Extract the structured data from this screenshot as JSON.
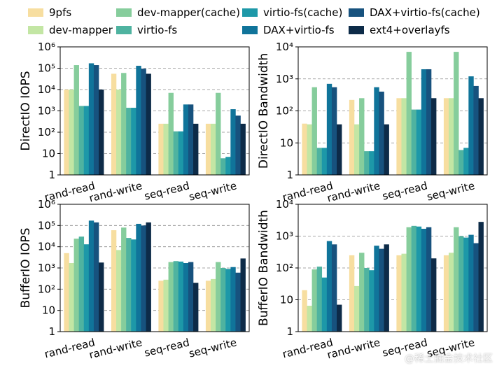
{
  "legend": [
    {
      "name": "9pfs",
      "color": "#f7dea0"
    },
    {
      "name": "dev-mapper",
      "color": "#c3e6a4"
    },
    {
      "name": "dev-mapper(cache)",
      "color": "#86cd9c"
    },
    {
      "name": "virtio-fs",
      "color": "#4fb3a0"
    },
    {
      "name": "virtio-fs(cache)",
      "color": "#1d98a8"
    },
    {
      "name": "DAX+virtio-fs",
      "color": "#10749a"
    },
    {
      "name": "DAX+virtio-fs(cache)",
      "color": "#17527e"
    },
    {
      "name": "ext4+overlayfs",
      "color": "#0d2b48"
    }
  ],
  "chart_data": [
    {
      "type": "bar",
      "ylabel": "DirectIO IOPS",
      "yscale": "log",
      "ylim": [
        1,
        1000000
      ],
      "yticks": [
        "1",
        "10",
        "10^2",
        "10^3",
        "10^4",
        "10^5",
        "10^6"
      ],
      "grid": "dashed-horizontal",
      "categories": [
        "rand-read",
        "rand-write",
        "seq-read",
        "seq-write"
      ],
      "series": [
        {
          "name": "9pfs",
          "values": [
            10000,
            55000,
            250,
            250
          ]
        },
        {
          "name": "dev-mapper",
          "values": [
            10000,
            10000,
            250,
            250
          ]
        },
        {
          "name": "dev-mapper(cache)",
          "values": [
            140000,
            60000,
            7000,
            7000
          ]
        },
        {
          "name": "virtio-fs",
          "values": [
            1700,
            1400,
            110,
            6
          ]
        },
        {
          "name": "virtio-fs(cache)",
          "values": [
            1700,
            1400,
            110,
            7
          ]
        },
        {
          "name": "DAX+virtio-fs",
          "values": [
            170000,
            130000,
            2000,
            1200
          ]
        },
        {
          "name": "DAX+virtio-fs(cache)",
          "values": [
            140000,
            95000,
            2000,
            600
          ]
        },
        {
          "name": "ext4+overlayfs",
          "values": [
            10000,
            55000,
            250,
            250
          ]
        }
      ]
    },
    {
      "type": "bar",
      "ylabel": "DirectIO Bandwidth",
      "yscale": "log",
      "ylim": [
        1,
        10000
      ],
      "yticks": [
        "1",
        "10",
        "10^2",
        "10^3",
        "10^4"
      ],
      "grid": "dashed-horizontal",
      "categories": [
        "rand-read",
        "rand-write",
        "seq-read",
        "seq-write"
      ],
      "series": [
        {
          "name": "9pfs",
          "values": [
            40,
            220,
            250,
            250
          ]
        },
        {
          "name": "dev-mapper",
          "values": [
            38,
            38,
            250,
            250
          ]
        },
        {
          "name": "dev-mapper(cache)",
          "values": [
            550,
            250,
            7000,
            7000
          ]
        },
        {
          "name": "virtio-fs",
          "values": [
            7,
            5.5,
            110,
            6
          ]
        },
        {
          "name": "virtio-fs(cache)",
          "values": [
            7,
            5.5,
            110,
            7
          ]
        },
        {
          "name": "DAX+virtio-fs",
          "values": [
            700,
            550,
            2000,
            1200
          ]
        },
        {
          "name": "DAX+virtio-fs(cache)",
          "values": [
            550,
            400,
            2000,
            600
          ]
        },
        {
          "name": "ext4+overlayfs",
          "values": [
            38,
            38,
            250,
            250
          ]
        }
      ]
    },
    {
      "type": "bar",
      "ylabel": "BufferIO IOPS",
      "yscale": "log",
      "ylim": [
        1,
        1000000
      ],
      "yticks": [
        "1",
        "10",
        "10^2",
        "10^3",
        "10^4",
        "10^5",
        "10^6"
      ],
      "grid": "dashed-horizontal",
      "categories": [
        "rand-read",
        "rand-write",
        "seq-read",
        "seq-write"
      ],
      "series": [
        {
          "name": "9pfs",
          "values": [
            5000,
            60000,
            250,
            250
          ]
        },
        {
          "name": "dev-mapper",
          "values": [
            1700,
            7000,
            280,
            300
          ]
        },
        {
          "name": "dev-mapper(cache)",
          "values": [
            24000,
            80000,
            1900,
            1900
          ]
        },
        {
          "name": "virtio-fs",
          "values": [
            30000,
            26000,
            2100,
            1000
          ]
        },
        {
          "name": "virtio-fs(cache)",
          "values": [
            13000,
            22000,
            2000,
            900
          ]
        },
        {
          "name": "DAX+virtio-fs",
          "values": [
            170000,
            120000,
            1700,
            1100
          ]
        },
        {
          "name": "DAX+virtio-fs(cache)",
          "values": [
            140000,
            100000,
            1900,
            600
          ]
        },
        {
          "name": "ext4+overlayfs",
          "values": [
            1800,
            140000,
            200,
            2800
          ]
        }
      ]
    },
    {
      "type": "bar",
      "ylabel": "BufferIO Bandwidth",
      "yscale": "log",
      "ylim": [
        1,
        10000
      ],
      "yticks": [
        "1",
        "10",
        "10^2",
        "10^3",
        "10^4"
      ],
      "grid": "dashed-horizontal",
      "categories": [
        "rand-read",
        "rand-write",
        "seq-read",
        "seq-write"
      ],
      "series": [
        {
          "name": "9pfs",
          "values": [
            20,
            250,
            250,
            250
          ]
        },
        {
          "name": "dev-mapper",
          "values": [
            6.5,
            27,
            280,
            300
          ]
        },
        {
          "name": "dev-mapper(cache)",
          "values": [
            90,
            300,
            1900,
            1900
          ]
        },
        {
          "name": "virtio-fs",
          "values": [
            110,
            100,
            2100,
            1000
          ]
        },
        {
          "name": "virtio-fs(cache)",
          "values": [
            50,
            85,
            2000,
            900
          ]
        },
        {
          "name": "DAX+virtio-fs",
          "values": [
            700,
            500,
            1700,
            1100
          ]
        },
        {
          "name": "DAX+virtio-fs(cache)",
          "values": [
            550,
            400,
            1900,
            600
          ]
        },
        {
          "name": "ext4+overlayfs",
          "values": [
            7,
            550,
            200,
            2800
          ]
        }
      ]
    }
  ],
  "watermark": "@稀土掘金技术社区"
}
